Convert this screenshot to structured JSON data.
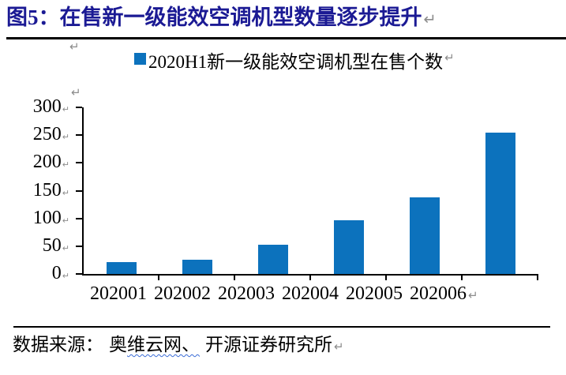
{
  "page": {
    "return_mark": "↵"
  },
  "header": {
    "title": "图5：在售新一级能效空调机型数量逐步提升"
  },
  "legend": {
    "label": "2020H1新一级能效空调机型在售个数"
  },
  "chart_data": {
    "type": "bar",
    "title": "图5：在售新一级能效空调机型数量逐步提升",
    "series_name": "2020H1新一级能效空调机型在售个数",
    "categories": [
      "202001",
      "202002",
      "202003",
      "202004",
      "202005",
      "202006"
    ],
    "values": [
      21,
      26,
      52,
      97,
      138,
      255
    ],
    "xlabel": "",
    "ylabel": "",
    "ylim": [
      0,
      300
    ],
    "yticks": [
      0,
      50,
      100,
      150,
      200,
      250,
      300
    ],
    "grid": false,
    "legend_position": "top-center",
    "bar_color": "#0c72bd"
  },
  "footer": {
    "prefix": "数据来源：",
    "source_head": "奥",
    "source_wavy": "维云网、",
    "source_rest": "开源证券研究所"
  },
  "colors": {
    "title": "#1b1a94",
    "bar": "#0c72bd",
    "axis": "#000000",
    "return_mark": "#8c8c8c",
    "wavy_underline": "#3a6bd6"
  }
}
